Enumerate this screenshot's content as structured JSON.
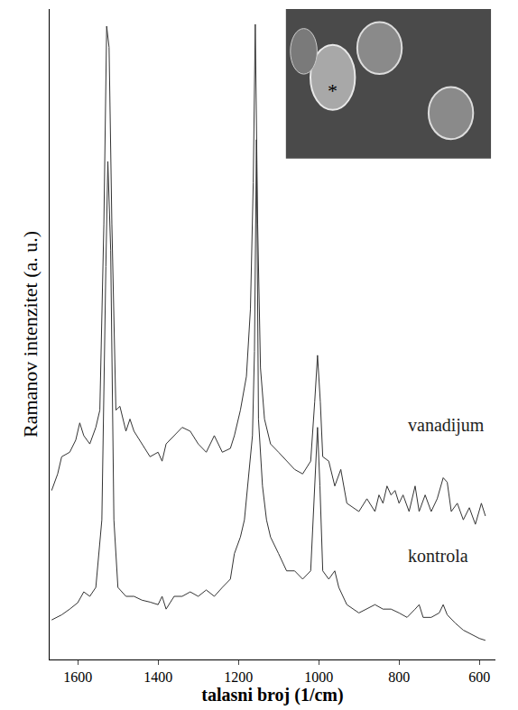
{
  "chart_data": {
    "type": "line",
    "x_label": "talasni broj (1/cm)",
    "y_label": "Ramanov intenzitet (a. u.)",
    "xlim": [
      1670,
      560
    ],
    "xticks": [
      1600,
      1400,
      1200,
      1000,
      800,
      600
    ],
    "ylim": [
      0,
      102
    ],
    "yticks": [],
    "tick_labels": "x",
    "grid": false,
    "annotations": [
      "*"
    ],
    "series": [
      {
        "name": "vanadijum",
        "color": "#333333",
        "x": [
          1665,
          1650,
          1640,
          1620,
          1605,
          1595,
          1585,
          1570,
          1555,
          1545,
          1535,
          1528,
          1522,
          1515,
          1505,
          1495,
          1480,
          1470,
          1460,
          1440,
          1420,
          1400,
          1390,
          1380,
          1360,
          1340,
          1320,
          1300,
          1280,
          1260,
          1240,
          1220,
          1210,
          1195,
          1180,
          1170,
          1163,
          1158,
          1152,
          1145,
          1135,
          1120,
          1100,
          1080,
          1060,
          1040,
          1020,
          1010,
          1003,
          996,
          990,
          975,
          960,
          945,
          930,
          900,
          880,
          860,
          850,
          840,
          830,
          820,
          810,
          800,
          790,
          775,
          760,
          750,
          735,
          720,
          705,
          690,
          680,
          670,
          655,
          640,
          625,
          610,
          595,
          585
        ],
        "values": [
          26.5,
          29.1,
          31.8,
          32.5,
          34.4,
          37.1,
          35.1,
          33.8,
          36.4,
          39.1,
          68.2,
          99.3,
          96.0,
          68.2,
          39.1,
          39.7,
          35.8,
          37.7,
          35.8,
          33.8,
          31.8,
          32.5,
          31.1,
          33.8,
          35.1,
          36.4,
          35.8,
          33.8,
          32.5,
          35.1,
          32.5,
          33.1,
          35.1,
          39.1,
          44.4,
          55.0,
          74.8,
          99.6,
          68.2,
          45.7,
          37.7,
          33.8,
          32.5,
          31.1,
          29.8,
          29.1,
          31.1,
          40.4,
          47.7,
          40.4,
          31.8,
          31.1,
          27.2,
          29.8,
          24.5,
          23.2,
          25.2,
          23.2,
          25.8,
          24.5,
          27.2,
          25.8,
          26.5,
          24.5,
          25.8,
          23.2,
          27.2,
          23.2,
          25.8,
          23.2,
          25.2,
          28.5,
          27.8,
          23.2,
          24.5,
          21.9,
          23.8,
          21.2,
          24.5,
          22.5
        ]
      },
      {
        "name": "kontrola",
        "color": "#333333",
        "x": [
          1665,
          1640,
          1620,
          1600,
          1585,
          1570,
          1555,
          1540,
          1530,
          1525,
          1518,
          1510,
          1500,
          1480,
          1460,
          1440,
          1420,
          1400,
          1390,
          1380,
          1360,
          1340,
          1320,
          1300,
          1280,
          1260,
          1240,
          1220,
          1210,
          1195,
          1185,
          1175,
          1165,
          1160,
          1155,
          1150,
          1140,
          1130,
          1120,
          1100,
          1080,
          1060,
          1040,
          1020,
          1010,
          1003,
          997,
          990,
          975,
          960,
          950,
          930,
          900,
          880,
          860,
          840,
          820,
          800,
          780,
          760,
          750,
          740,
          720,
          700,
          690,
          680,
          660,
          640,
          620,
          600,
          585
        ],
        "values": [
          6.2,
          7.0,
          7.9,
          8.9,
          10.6,
          9.9,
          11.3,
          21.9,
          61.6,
          78.1,
          64.2,
          21.9,
          11.3,
          9.9,
          9.9,
          9.3,
          9.0,
          8.6,
          9.9,
          7.9,
          9.9,
          9.9,
          10.6,
          9.9,
          10.9,
          9.9,
          11.3,
          12.6,
          16.6,
          19.2,
          21.9,
          29.1,
          35.1,
          48.3,
          81.5,
          37.7,
          27.2,
          21.9,
          19.2,
          16.6,
          13.9,
          13.9,
          12.6,
          13.9,
          27.2,
          36.4,
          27.2,
          13.9,
          12.6,
          13.9,
          11.3,
          8.6,
          7.3,
          7.9,
          8.6,
          7.9,
          7.9,
          7.3,
          6.6,
          7.9,
          8.6,
          6.6,
          6.6,
          7.3,
          8.6,
          7.0,
          5.7,
          4.6,
          4.0,
          3.3,
          3.0
        ]
      }
    ]
  }
}
